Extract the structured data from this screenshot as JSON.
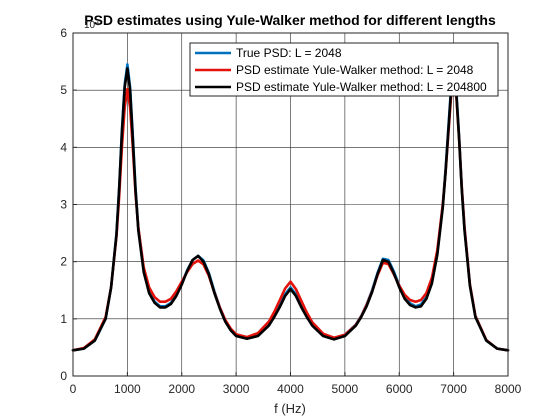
{
  "chart_data": {
    "type": "line",
    "title": "PSD estimates using Yule-Walker method for different lengths",
    "xlabel": "f (Hz)",
    "ylabel": "",
    "y_exponent_label": "10⁴",
    "xlim": [
      0,
      8000
    ],
    "ylim": [
      0,
      6
    ],
    "xticks": [
      0,
      1000,
      2000,
      3000,
      4000,
      5000,
      6000,
      7000,
      8000
    ],
    "yticks": [
      0,
      1,
      2,
      3,
      4,
      5,
      6
    ],
    "xtick_labels": [
      "0",
      "1000",
      "2000",
      "3000",
      "4000",
      "5000",
      "6000",
      "7000",
      "8000"
    ],
    "ytick_labels": [
      "0",
      "1",
      "2",
      "3",
      "4",
      "5",
      "6"
    ],
    "grid": true,
    "legend_position": "top-right",
    "series": [
      {
        "name": "True PSD: L = 2048",
        "color": "#0072BD",
        "x": [
          0,
          200,
          400,
          600,
          700,
          800,
          850,
          900,
          950,
          1000,
          1050,
          1100,
          1150,
          1200,
          1300,
          1400,
          1500,
          1600,
          1700,
          1800,
          1900,
          2000,
          2100,
          2200,
          2300,
          2400,
          2500,
          2600,
          2700,
          2800,
          2900,
          3000,
          3200,
          3400,
          3600,
          3700,
          3800,
          3900,
          4000,
          4100,
          4200,
          4300,
          4400,
          4600,
          4800,
          5000,
          5200,
          5300,
          5400,
          5500,
          5600,
          5700,
          5800,
          5900,
          6000,
          6100,
          6200,
          6300,
          6400,
          6500,
          6600,
          6700,
          6800,
          6850,
          6900,
          6950,
          7000,
          7050,
          7100,
          7150,
          7200,
          7300,
          7400,
          7600,
          7800,
          8000
        ],
        "y": [
          0.45,
          0.48,
          0.62,
          1.0,
          1.55,
          2.5,
          3.3,
          4.3,
          5.1,
          5.45,
          5.05,
          4.2,
          3.3,
          2.6,
          1.85,
          1.48,
          1.3,
          1.22,
          1.22,
          1.28,
          1.42,
          1.62,
          1.85,
          2.03,
          2.1,
          2.02,
          1.8,
          1.48,
          1.2,
          0.97,
          0.82,
          0.72,
          0.66,
          0.72,
          0.9,
          1.05,
          1.23,
          1.43,
          1.55,
          1.43,
          1.23,
          1.05,
          0.9,
          0.72,
          0.66,
          0.72,
          0.9,
          1.05,
          1.25,
          1.5,
          1.8,
          2.05,
          2.03,
          1.83,
          1.58,
          1.38,
          1.27,
          1.22,
          1.25,
          1.38,
          1.65,
          2.15,
          3.0,
          3.6,
          4.3,
          5.0,
          5.45,
          5.0,
          4.2,
          3.3,
          2.6,
          1.6,
          1.05,
          0.62,
          0.48,
          0.45
        ]
      },
      {
        "name": "PSD estimate Yule-Walker method: L = 2048",
        "color": "#E3120B",
        "x": [
          0,
          200,
          400,
          600,
          700,
          800,
          850,
          900,
          950,
          1000,
          1050,
          1100,
          1150,
          1200,
          1300,
          1400,
          1500,
          1600,
          1700,
          1800,
          1900,
          2000,
          2100,
          2200,
          2300,
          2400,
          2500,
          2600,
          2700,
          2800,
          2900,
          3000,
          3200,
          3400,
          3600,
          3700,
          3800,
          3900,
          4000,
          4100,
          4200,
          4300,
          4400,
          4600,
          4800,
          5000,
          5200,
          5300,
          5400,
          5500,
          5600,
          5700,
          5800,
          5900,
          6000,
          6100,
          6200,
          6300,
          6400,
          6500,
          6600,
          6700,
          6800,
          6850,
          6900,
          6950,
          7000,
          7050,
          7100,
          7150,
          7200,
          7300,
          7400,
          7600,
          7800,
          8000
        ],
        "y": [
          0.45,
          0.49,
          0.64,
          1.03,
          1.55,
          2.45,
          3.15,
          4.0,
          4.7,
          5.02,
          4.7,
          4.0,
          3.2,
          2.6,
          1.9,
          1.55,
          1.38,
          1.3,
          1.3,
          1.35,
          1.48,
          1.65,
          1.82,
          1.96,
          2.02,
          1.95,
          1.75,
          1.46,
          1.2,
          0.98,
          0.83,
          0.73,
          0.68,
          0.75,
          0.95,
          1.12,
          1.32,
          1.53,
          1.65,
          1.52,
          1.31,
          1.11,
          0.94,
          0.74,
          0.67,
          0.72,
          0.89,
          1.04,
          1.24,
          1.48,
          1.76,
          1.98,
          1.96,
          1.78,
          1.58,
          1.42,
          1.33,
          1.3,
          1.33,
          1.45,
          1.72,
          2.2,
          3.0,
          3.55,
          4.2,
          4.85,
          5.4,
          4.9,
          4.15,
          3.3,
          2.6,
          1.6,
          1.05,
          0.63,
          0.48,
          0.45
        ]
      },
      {
        "name": "PSD estimate Yule-Walker method: L = 204800",
        "color": "#000000",
        "x": [
          0,
          200,
          400,
          600,
          700,
          800,
          850,
          900,
          950,
          1000,
          1050,
          1100,
          1150,
          1200,
          1300,
          1400,
          1500,
          1600,
          1700,
          1800,
          1900,
          2000,
          2100,
          2200,
          2300,
          2400,
          2500,
          2600,
          2700,
          2800,
          2900,
          3000,
          3200,
          3400,
          3600,
          3700,
          3800,
          3900,
          4000,
          4100,
          4200,
          4300,
          4400,
          4600,
          4800,
          5000,
          5200,
          5300,
          5400,
          5500,
          5600,
          5700,
          5800,
          5900,
          6000,
          6100,
          6200,
          6300,
          6400,
          6500,
          6600,
          6700,
          6800,
          6850,
          6900,
          6950,
          7000,
          7050,
          7100,
          7150,
          7200,
          7300,
          7400,
          7600,
          7800,
          8000
        ],
        "y": [
          0.45,
          0.48,
          0.62,
          1.0,
          1.55,
          2.48,
          3.28,
          4.25,
          5.05,
          5.38,
          5.0,
          4.15,
          3.25,
          2.55,
          1.82,
          1.45,
          1.28,
          1.2,
          1.2,
          1.26,
          1.4,
          1.6,
          1.84,
          2.03,
          2.1,
          2.0,
          1.78,
          1.45,
          1.18,
          0.95,
          0.8,
          0.7,
          0.65,
          0.7,
          0.88,
          1.03,
          1.2,
          1.4,
          1.52,
          1.4,
          1.2,
          1.03,
          0.88,
          0.7,
          0.64,
          0.7,
          0.88,
          1.03,
          1.22,
          1.47,
          1.78,
          2.03,
          2.0,
          1.8,
          1.55,
          1.35,
          1.24,
          1.2,
          1.22,
          1.35,
          1.62,
          2.12,
          2.95,
          3.55,
          4.25,
          4.95,
          5.38,
          4.95,
          4.15,
          3.25,
          2.55,
          1.58,
          1.03,
          0.62,
          0.48,
          0.45
        ]
      }
    ]
  }
}
